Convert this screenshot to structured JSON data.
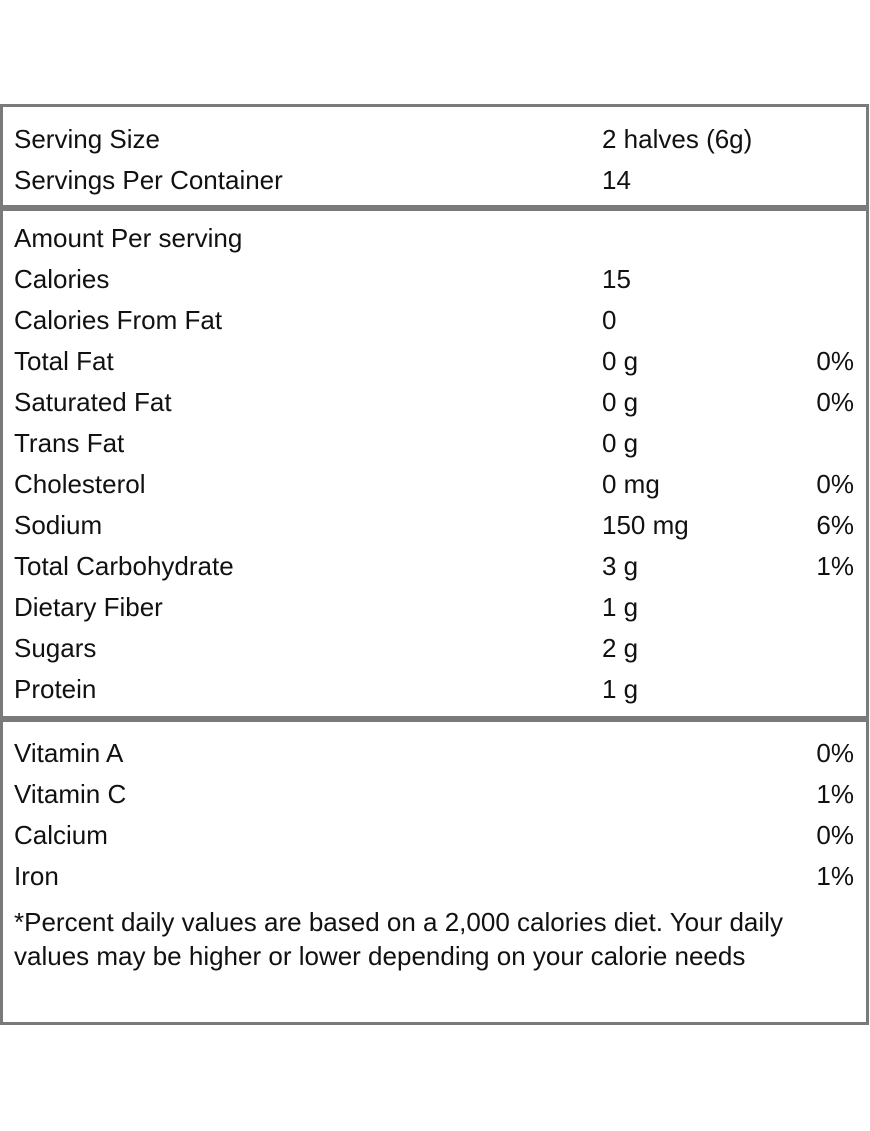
{
  "serving": {
    "size_label": "Serving Size",
    "size_value": "2 halves (6g)",
    "per_container_label": "Servings Per Container",
    "per_container_value": "14"
  },
  "nutrients": {
    "heading": "Amount Per serving",
    "rows": [
      {
        "name": "Calories",
        "amount": "15",
        "dv": ""
      },
      {
        "name": "Calories From Fat",
        "amount": "0",
        "dv": ""
      },
      {
        "name": "Total Fat",
        "amount": "0 g",
        "dv": "0%"
      },
      {
        "name": "Saturated Fat",
        "amount": "0 g",
        "dv": "0%"
      },
      {
        "name": "Trans Fat",
        "amount": "0 g",
        "dv": ""
      },
      {
        "name": "Cholesterol",
        "amount": "0 mg",
        "dv": "0%"
      },
      {
        "name": "Sodium",
        "amount": "150 mg",
        "dv": "6%"
      },
      {
        "name": "Total Carbohydrate",
        "amount": "3 g",
        "dv": "1%"
      },
      {
        "name": "Dietary Fiber",
        "amount": "1 g",
        "dv": ""
      },
      {
        "name": "Sugars",
        "amount": "2 g",
        "dv": ""
      },
      {
        "name": "Protein",
        "amount": "1 g",
        "dv": ""
      }
    ]
  },
  "vitamins": {
    "rows": [
      {
        "name": "Vitamin A",
        "dv": "0%"
      },
      {
        "name": "Vitamin C",
        "dv": "1%"
      },
      {
        "name": "Calcium",
        "dv": "0%"
      },
      {
        "name": "Iron",
        "dv": "1%"
      }
    ],
    "footnote": "*Percent daily values are based on a 2,000 calories diet. Your daily values may be higher or lower depending on your calorie needs"
  },
  "colors": {
    "border": "#7a7a7a",
    "text": "#111111",
    "background": "#ffffff"
  }
}
